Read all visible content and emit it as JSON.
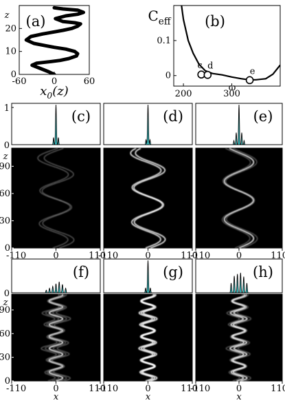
{
  "chart_data": [
    {
      "id": "a",
      "type": "line",
      "panel_label": "(a)",
      "xlabel": "x₀(z)",
      "xlabel_base": "x",
      "xlabel_sub": "0",
      "xlabel_tail": "(z)",
      "ylabel": "z",
      "xlim": [
        -60,
        60
      ],
      "ylim": [
        0,
        30
      ],
      "xticks": [
        "-60",
        "0",
        "60"
      ],
      "yticks": [
        "0",
        "10",
        "20"
      ],
      "series": [
        {
          "x": [
            0,
            -10,
            -25,
            -38,
            -30,
            -5,
            10,
            25,
            38,
            40,
            35,
            20,
            0,
            -15,
            -35,
            -48,
            -40,
            -20,
            0,
            15,
            30,
            40,
            45,
            35,
            15,
            2,
            20,
            40,
            50,
            40,
            15,
            0
          ],
          "y": [
            0,
            1.2,
            2.7,
            4.0,
            4.9,
            5.6,
            6.1,
            6.9,
            8.0,
            9.0,
            10.0,
            11.0,
            11.8,
            12.5,
            13.5,
            15.0,
            16.5,
            17.6,
            18.5,
            19.2,
            20.0,
            21.0,
            22.0,
            22.5,
            23.0,
            24.3,
            25.5,
            26.2,
            27.0,
            28.0,
            28.5,
            29.0
          ]
        }
      ]
    },
    {
      "id": "b",
      "type": "scatter",
      "panel_label": "(b)",
      "xlabel": "ω",
      "ylabel": "C_eff",
      "ylabel_base": "C",
      "ylabel_sub": "eff",
      "xlim": [
        180,
        400
      ],
      "ylim": [
        -0.03,
        0.2
      ],
      "xticks": [
        "200",
        "300"
      ],
      "yticks": [
        "0",
        "0.1"
      ],
      "curve": {
        "x": [
          195,
          200,
          210,
          220,
          232,
          245,
          260,
          280,
          300,
          320,
          335,
          350,
          370,
          385,
          400
        ],
        "y": [
          0.21,
          0.16,
          0.1,
          0.064,
          0.033,
          0.014,
          0.006,
          0.002,
          -0.004,
          -0.009,
          -0.012,
          -0.012,
          -0.009,
          0.004,
          0.03
        ]
      },
      "points": [
        {
          "label": "c",
          "x": 237,
          "y": 0.003
        },
        {
          "label": "d",
          "x": 250,
          "y": 0.002
        },
        {
          "label": "e",
          "x": 337,
          "y": -0.013
        }
      ]
    },
    {
      "id": "c",
      "type": "area",
      "panel_label": "(c)",
      "profile_ylim": [
        0,
        1
      ],
      "profile_yticks": [
        "0",
        "1"
      ],
      "profile_peaks": [
        [
          0,
          1.0,
          1.5
        ],
        [
          -6,
          0.18,
          1.2
        ],
        [
          6,
          0.18,
          1.2
        ]
      ],
      "xlim": [
        -110,
        110
      ],
      "xticks": [
        "-110",
        "0",
        "110"
      ],
      "zlim": [
        0,
        110
      ],
      "zticks": [
        "0",
        "30",
        "60",
        "90"
      ],
      "z_axis_label": "z",
      "trajectory": {
        "amplitude": 62,
        "period": 36,
        "spread": [
          -8,
          8
        ]
      }
    },
    {
      "id": "d",
      "type": "area",
      "panel_label": "(d)",
      "profile_ylim": [
        0,
        1
      ],
      "profile_yticks": [],
      "profile_peaks": [
        [
          0,
          1.0,
          1.5
        ],
        [
          -5,
          0.12,
          1.2
        ],
        [
          5,
          0.12,
          1.2
        ]
      ],
      "xlim": [
        -110,
        110
      ],
      "xticks": [
        "-110",
        "0",
        "110"
      ],
      "zlim": [
        0,
        110
      ],
      "zticks": [],
      "z_axis_label": "",
      "trajectory": {
        "amplitude": 62,
        "period": 38,
        "spread": [
          -6,
          6
        ]
      }
    },
    {
      "id": "e",
      "type": "area",
      "panel_label": "(e)",
      "profile_ylim": [
        0,
        1
      ],
      "profile_yticks": [],
      "profile_peaks": [
        [
          0,
          1.0,
          1.5
        ],
        [
          -7,
          0.3,
          1.3
        ],
        [
          7,
          0.3,
          1.3
        ],
        [
          -13,
          0.1,
          1.2
        ],
        [
          13,
          0.1,
          1.2
        ]
      ],
      "xlim": [
        -110,
        110
      ],
      "xticks": [
        "-110",
        "0",
        "110"
      ],
      "zlim": [
        0,
        110
      ],
      "zticks": [],
      "z_axis_label": "",
      "trajectory": {
        "amplitude": 62,
        "period": 42,
        "spread": [
          -10,
          0,
          10
        ]
      }
    },
    {
      "id": "f",
      "type": "area",
      "panel_label": "(f)",
      "profile_ylim": [
        0,
        1
      ],
      "profile_yticks": [
        "0"
      ],
      "profile_peaks": [
        [
          -24,
          0.08,
          1.5
        ],
        [
          -16,
          0.14,
          1.5
        ],
        [
          -8,
          0.2,
          1.5
        ],
        [
          0,
          0.28,
          1.5
        ],
        [
          8,
          0.34,
          1.5
        ],
        [
          16,
          0.26,
          1.5
        ],
        [
          24,
          0.14,
          1.5
        ]
      ],
      "xlim": [
        -110,
        110
      ],
      "xticks": [
        "-110",
        "0",
        "110"
      ],
      "zlim": [
        0,
        110
      ],
      "zticks": [
        "0",
        "30",
        "60",
        "90"
      ],
      "z_axis_label": "z",
      "trajectory": {
        "amplitude": 28,
        "period": 15,
        "spread": [
          -20,
          -10,
          0,
          10,
          20
        ]
      }
    },
    {
      "id": "g",
      "type": "area",
      "panel_label": "(g)",
      "profile_ylim": [
        0,
        1
      ],
      "profile_yticks": [],
      "profile_peaks": [
        [
          0,
          1.0,
          1.5
        ],
        [
          -6,
          0.15,
          1.2
        ],
        [
          6,
          0.15,
          1.2
        ]
      ],
      "xlim": [
        -110,
        110
      ],
      "xticks": [
        "-110",
        "0",
        "110"
      ],
      "zlim": [
        0,
        110
      ],
      "zticks": [],
      "z_axis_label": "",
      "trajectory": {
        "amplitude": 28,
        "period": 15,
        "spread": [
          -6,
          0,
          6
        ]
      }
    },
    {
      "id": "h",
      "type": "area",
      "panel_label": "(h)",
      "profile_ylim": [
        0,
        1
      ],
      "profile_yticks": [],
      "profile_peaks": [
        [
          -20,
          0.3,
          1.5
        ],
        [
          -12,
          0.52,
          1.5
        ],
        [
          -4,
          0.58,
          1.5
        ],
        [
          4,
          0.62,
          1.5
        ],
        [
          12,
          0.5,
          1.5
        ],
        [
          20,
          0.3,
          1.5
        ]
      ],
      "xlim": [
        -110,
        110
      ],
      "xticks": [
        "-110",
        "0",
        "110"
      ],
      "zlim": [
        0,
        110
      ],
      "zticks": [],
      "z_axis_label": "",
      "trajectory": {
        "amplitude": 28,
        "period": 15,
        "spread": [
          -16,
          -6,
          4,
          14
        ]
      }
    }
  ],
  "bottom_axis_label": "x",
  "colors": {
    "profile_fill": "#3fd3d6",
    "density_background": "#000000",
    "trajectory_bright": "#ffffff",
    "trajectory_dim": "#9a9a9a"
  }
}
